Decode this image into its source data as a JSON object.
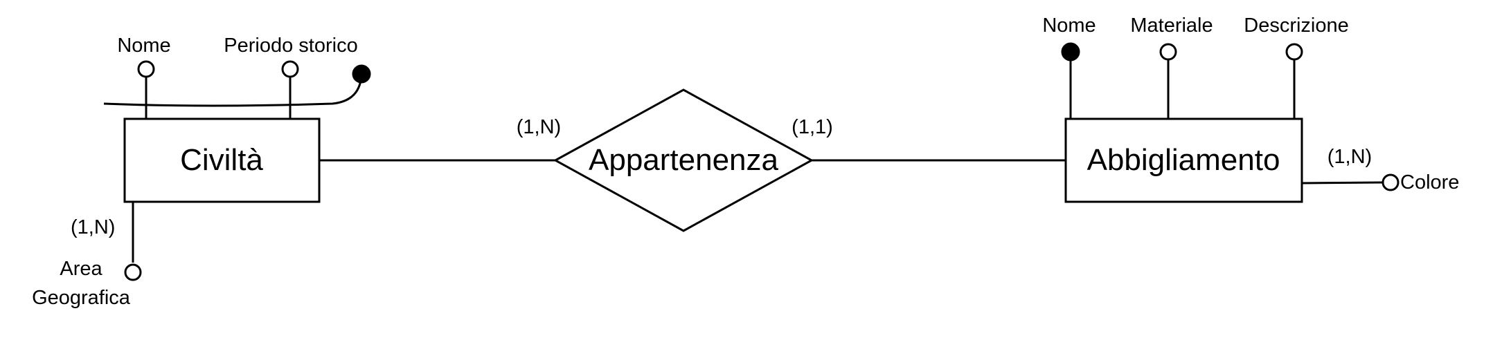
{
  "diagram": {
    "entities": {
      "civilta": "Civiltà",
      "abbigliamento": "Abbigliamento"
    },
    "relationship": {
      "name": "Appartenenza",
      "card_civilta": "(1,N)",
      "card_abbigliamento": "(1,1)"
    },
    "civilta_attributes": {
      "nome": "Nome",
      "periodo": "Periodo storico",
      "area_line1": "Area",
      "area_line2": "Geografica",
      "area_card": "(1,N)"
    },
    "abbigliamento_attributes": {
      "nome": "Nome",
      "materiale": "Materiale",
      "descrizione": "Descrizione",
      "colore": "Colore",
      "colore_card": "(1,N)"
    }
  }
}
